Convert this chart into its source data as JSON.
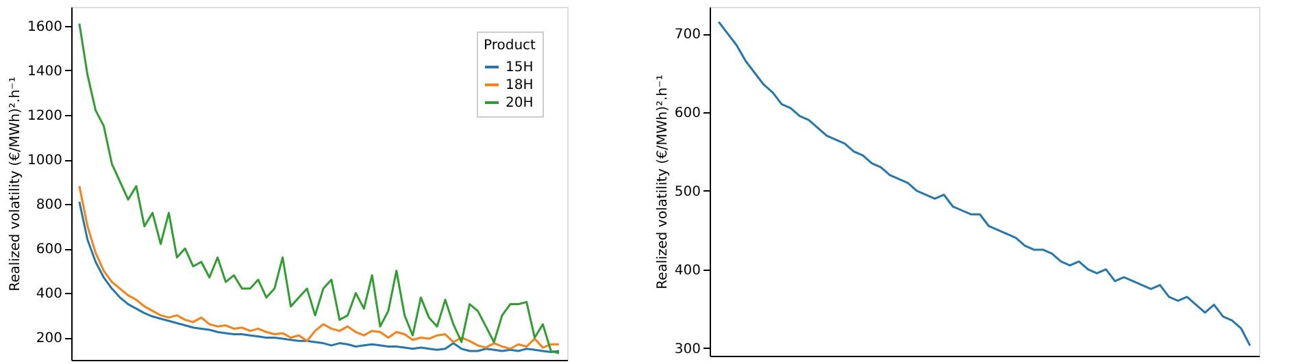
{
  "chart_data": [
    {
      "type": "line",
      "ylabel": "Realized volatility (€/MWh)².h⁻¹",
      "legend_title": "Product",
      "legend": "top right",
      "grid": false,
      "tick_labels": "y",
      "categories": [
        null,
        null,
        null,
        null,
        null,
        null,
        null,
        null,
        null,
        null,
        null,
        null,
        null,
        null,
        null,
        null,
        null,
        null,
        null,
        null,
        null,
        null,
        null,
        null,
        null,
        null,
        null,
        null,
        null,
        null,
        null,
        null,
        null,
        null,
        null,
        null,
        null,
        null,
        null,
        null,
        null,
        null,
        null,
        null,
        null,
        null,
        null,
        null,
        null,
        null,
        null,
        null,
        null,
        null,
        null,
        null,
        null,
        null,
        null,
        null
      ],
      "ylim": [
        100,
        1685
      ],
      "yticks": [
        200,
        400,
        600,
        800,
        1000,
        1200,
        1400,
        1600
      ],
      "series": [
        {
          "name": "15H",
          "color": "#1f77b4",
          "values": [
            810,
            640,
            540,
            470,
            420,
            380,
            350,
            330,
            310,
            295,
            285,
            275,
            265,
            255,
            245,
            240,
            235,
            225,
            220,
            215,
            215,
            210,
            205,
            200,
            200,
            195,
            190,
            185,
            185,
            180,
            175,
            165,
            175,
            170,
            160,
            165,
            170,
            165,
            160,
            160,
            155,
            150,
            155,
            150,
            145,
            150,
            175,
            150,
            140,
            140,
            150,
            145,
            140,
            145,
            140,
            150,
            145,
            140,
            135,
            140
          ]
        },
        {
          "name": "18H",
          "color": "#ff7f0e",
          "values": [
            880,
            700,
            580,
            500,
            450,
            420,
            390,
            370,
            340,
            320,
            300,
            290,
            300,
            280,
            270,
            290,
            260,
            250,
            255,
            240,
            245,
            230,
            240,
            225,
            215,
            220,
            200,
            210,
            185,
            230,
            260,
            240,
            230,
            250,
            225,
            210,
            230,
            225,
            200,
            225,
            215,
            190,
            200,
            195,
            210,
            215,
            180,
            200,
            185,
            165,
            155,
            175,
            160,
            150,
            170,
            160,
            195,
            155,
            170,
            170
          ]
        },
        {
          "name": "20H",
          "color": "#2ca02c",
          "values": [
            1610,
            1380,
            1220,
            1150,
            980,
            900,
            820,
            880,
            700,
            760,
            620,
            760,
            560,
            600,
            520,
            540,
            470,
            560,
            450,
            480,
            420,
            420,
            460,
            380,
            420,
            560,
            340,
            380,
            420,
            300,
            420,
            460,
            280,
            300,
            400,
            330,
            480,
            250,
            320,
            500,
            300,
            210,
            380,
            290,
            250,
            370,
            260,
            180,
            350,
            320,
            250,
            180,
            300,
            350,
            350,
            360,
            200,
            260,
            140,
            130
          ]
        }
      ]
    },
    {
      "type": "line",
      "ylabel": "Realized volatility (€/MWh)².h⁻¹",
      "grid": false,
      "tick_labels": "y",
      "categories": [
        null,
        null,
        null,
        null,
        null,
        null,
        null,
        null,
        null,
        null,
        null,
        null,
        null,
        null,
        null,
        null,
        null,
        null,
        null,
        null,
        null,
        null,
        null,
        null,
        null,
        null,
        null,
        null,
        null,
        null,
        null,
        null,
        null,
        null,
        null,
        null,
        null,
        null,
        null,
        null,
        null,
        null,
        null,
        null,
        null,
        null,
        null,
        null,
        null,
        null,
        null,
        null,
        null,
        null,
        null,
        null,
        null,
        null,
        null,
        null
      ],
      "ylim": [
        290,
        734
      ],
      "yticks": [
        300,
        400,
        500,
        600,
        700
      ],
      "series": [
        {
          "color": "#1f77b4",
          "values": [
            715,
            700,
            685,
            665,
            650,
            635,
            625,
            610,
            605,
            595,
            590,
            580,
            570,
            565,
            560,
            550,
            545,
            535,
            530,
            520,
            515,
            510,
            500,
            495,
            490,
            495,
            480,
            475,
            470,
            470,
            455,
            450,
            445,
            440,
            430,
            425,
            425,
            420,
            410,
            405,
            410,
            400,
            395,
            400,
            385,
            390,
            385,
            380,
            375,
            380,
            365,
            360,
            365,
            355,
            345,
            355,
            340,
            335,
            325,
            303
          ]
        }
      ]
    }
  ]
}
